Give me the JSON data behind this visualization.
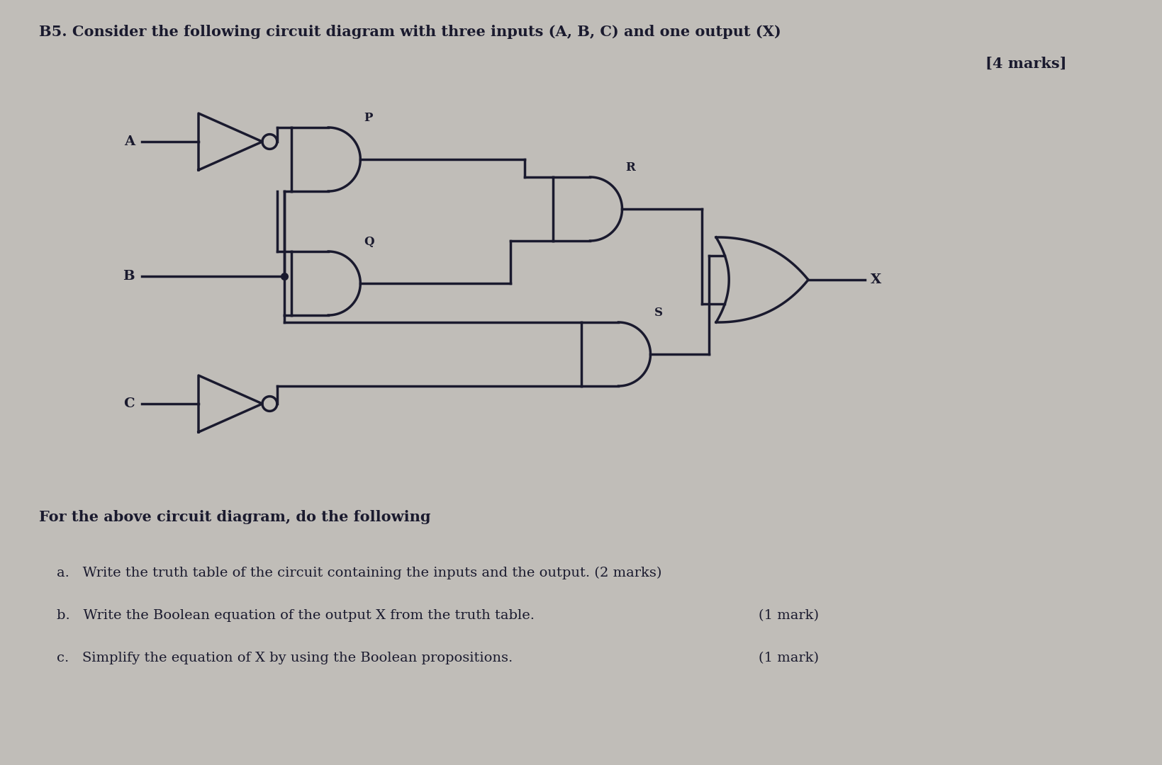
{
  "title": "B5. Consider the following circuit diagram with three inputs (A, B, C) and one output (X)",
  "marks": "[4 marks]",
  "bg_color": "#c0bdb8",
  "line_color": "#1a1a2e",
  "question_text": "For the above circuit diagram, do the following",
  "item_a": "a.   Write the truth table of the circuit containing the inputs and the output. (2 marks)",
  "item_b": "b.   Write the Boolean equation of the output X from the truth table.",
  "item_b_mark": "(1 mark)",
  "item_c": "c.   Simplify the equation of X by using the Boolean propositions.",
  "item_c_mark": "(1 mark)",
  "title_fontsize": 15,
  "marks_fontsize": 15,
  "question_fontsize": 15,
  "item_fontsize": 14,
  "bg_color_top": "#c5c2bc",
  "bg_color_bot": "#aba89f"
}
